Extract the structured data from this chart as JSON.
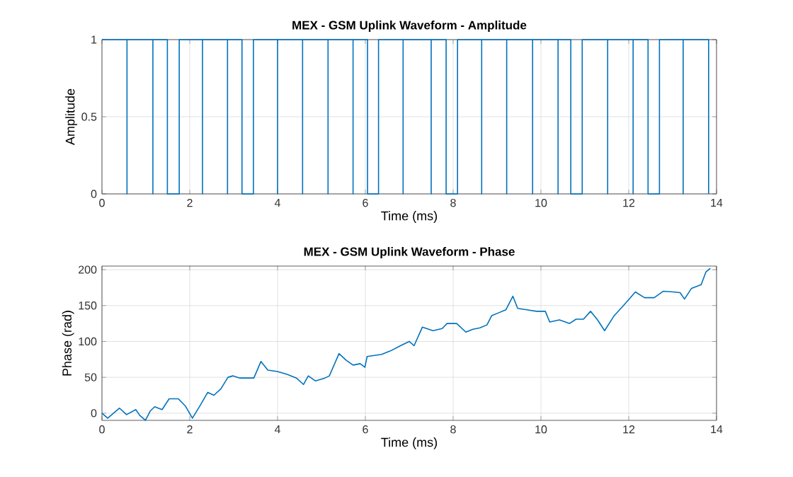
{
  "chart_data": [
    {
      "type": "line",
      "title": "MEX - GSM Uplink Waveform - Amplitude",
      "xlabel": "Time (ms)",
      "ylabel": "Amplitude",
      "xlim": [
        0,
        14
      ],
      "xticks": [
        0,
        2,
        4,
        6,
        8,
        10,
        12,
        14
      ],
      "ylim": [
        0,
        1
      ],
      "yticks": [
        0,
        0.5,
        1
      ],
      "grid": true,
      "series": [
        {
          "color": "#0072bd",
          "x": [
            0,
            0.57,
            0.57,
            0.57,
            1.16,
            1.16,
            1.16,
            1.49,
            1.49,
            1.76,
            1.76,
            2.29,
            2.29,
            2.29,
            2.86,
            2.86,
            2.86,
            3.19,
            3.19,
            3.45,
            3.45,
            4.0,
            4.0,
            4.0,
            4.57,
            4.57,
            4.57,
            5.15,
            5.15,
            5.15,
            5.72,
            5.72,
            5.72,
            6.05,
            6.05,
            6.3,
            6.3,
            6.86,
            6.86,
            6.86,
            7.5,
            7.5,
            7.5,
            7.84,
            7.84,
            8.1,
            8.1,
            8.65,
            8.65,
            8.65,
            9.22,
            9.22,
            9.22,
            9.81,
            9.81,
            9.81,
            10.39,
            10.39,
            10.39,
            10.68,
            10.68,
            10.94,
            10.94,
            11.52,
            11.52,
            11.52,
            12.1,
            12.1,
            12.1,
            12.44,
            12.44,
            12.7,
            12.7,
            13.24,
            13.24,
            13.24,
            13.82,
            13.82
          ],
          "values": [
            1,
            1,
            0,
            1,
            1,
            0,
            1,
            1,
            0,
            0,
            1,
            1,
            0,
            1,
            1,
            0,
            1,
            1,
            0,
            0,
            1,
            1,
            0,
            1,
            1,
            0,
            1,
            1,
            0,
            1,
            1,
            0,
            1,
            1,
            0,
            0,
            1,
            1,
            0,
            1,
            1,
            0,
            1,
            1,
            0,
            0,
            1,
            1,
            0,
            1,
            1,
            0,
            1,
            1,
            0,
            1,
            1,
            0,
            1,
            1,
            0,
            0,
            1,
            1,
            0,
            1,
            1,
            0,
            1,
            1,
            0,
            0,
            1,
            1,
            0,
            1,
            1,
            0
          ]
        }
      ]
    },
    {
      "type": "line",
      "title": "MEX - GSM Uplink Waveform - Phase",
      "xlabel": "Time (ms)",
      "ylabel": "Phase (rad)",
      "xlim": [
        0,
        14
      ],
      "xticks": [
        0,
        2,
        4,
        6,
        8,
        10,
        12,
        14
      ],
      "ylim": [
        -10,
        205
      ],
      "yticks": [
        0,
        50,
        100,
        150,
        200
      ],
      "grid": true,
      "series": [
        {
          "color": "#0072bd",
          "x": [
            0,
            0.13,
            0.4,
            0.56,
            0.77,
            0.86,
            0.99,
            1.1,
            1.2,
            1.37,
            1.53,
            1.74,
            1.9,
            2.06,
            2.23,
            2.41,
            2.55,
            2.71,
            2.87,
            2.98,
            3.14,
            3.46,
            3.62,
            3.78,
            4.0,
            4.22,
            4.43,
            4.59,
            4.7,
            4.86,
            5.08,
            5.18,
            5.4,
            5.56,
            5.72,
            5.88,
            5.99,
            6.04,
            6.37,
            6.58,
            6.8,
            7.0,
            7.11,
            7.3,
            7.54,
            7.75,
            7.86,
            8.08,
            8.29,
            8.45,
            8.61,
            8.77,
            8.88,
            9.04,
            9.2,
            9.36,
            9.47,
            9.68,
            9.9,
            10.1,
            10.2,
            10.42,
            10.65,
            10.8,
            10.97,
            11.13,
            11.29,
            11.45,
            11.67,
            11.88,
            12.04,
            12.15,
            12.36,
            12.58,
            12.79,
            13.01,
            13.17,
            13.27,
            13.43,
            13.65,
            13.76,
            13.86
          ],
          "values": [
            0,
            -7,
            7,
            -2,
            5,
            -3,
            -10,
            3,
            9,
            5,
            20,
            20,
            10,
            -7,
            10,
            29,
            25,
            34,
            50,
            52,
            49,
            49,
            72,
            60,
            58,
            54,
            49,
            40,
            52,
            45,
            49,
            52,
            83,
            74,
            67,
            69,
            64,
            79,
            82,
            87,
            94,
            100,
            94,
            120,
            115,
            118,
            125,
            125,
            113,
            117,
            119,
            123,
            136,
            140,
            144,
            163,
            146,
            144,
            142,
            142,
            127,
            130,
            125,
            131,
            131,
            142,
            130,
            115,
            136,
            150,
            161,
            169,
            161,
            161,
            170,
            169,
            168,
            159,
            174,
            179,
            197,
            202
          ]
        }
      ]
    }
  ]
}
